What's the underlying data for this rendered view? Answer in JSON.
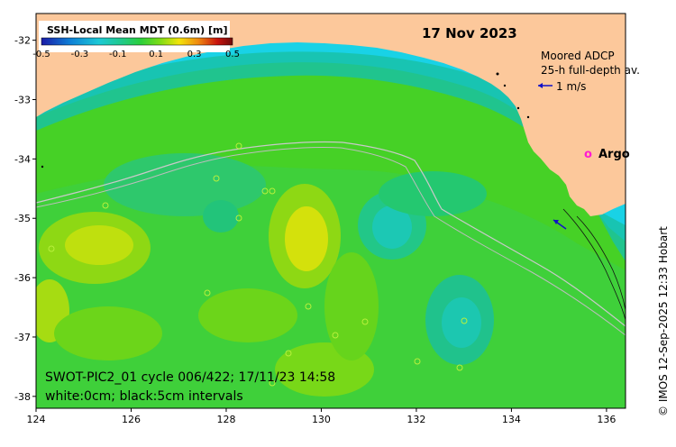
{
  "map": {
    "date_title": "17 Nov 2023",
    "colorbar": {
      "title": "SSH-Local Mean MDT (0.6m) [m]",
      "ticks": [
        "-0.5",
        "-0.3",
        "-0.1",
        "0.1",
        "0.3",
        "0.5"
      ],
      "colors": [
        "#1a1aa6",
        "#0e7fd6",
        "#1cc9d6",
        "#20c98a",
        "#2bcf3a",
        "#7ddc16",
        "#f2e40a",
        "#f08a10",
        "#c8140e",
        "#6e0b0b"
      ]
    },
    "lon_ticks": [
      "124",
      "126",
      "128",
      "130",
      "132",
      "134",
      "136"
    ],
    "lat_ticks": [
      "-32",
      "-33",
      "-34",
      "-35",
      "-36",
      "-37",
      "-38"
    ],
    "legend": {
      "adcp_line1": "Moored ADCP",
      "adcp_line2": "25-h full-depth av.",
      "adcp_scale": "1 m/s",
      "argo_symbol": "o",
      "argo_label": "Argo"
    },
    "info_line1": "SWOT-PIC2_01 cycle 006/422; 17/11/23 14:58",
    "info_line2": "white:0cm; black:5cm intervals",
    "credit": "© IMOS 12-Sep-2025 12:33 Hobart",
    "colors": {
      "land": "#fcc89b",
      "shelf_cyan": "#19d2e6",
      "mid_teal": "#16c3a0",
      "sea_green": "#1ed25a",
      "bright_green": "#52d81e",
      "yellow_green": "#a6e010",
      "yellow": "#e4e40e",
      "adcp_arrow": "#1010c8",
      "argo": "#ff1ad2"
    }
  }
}
